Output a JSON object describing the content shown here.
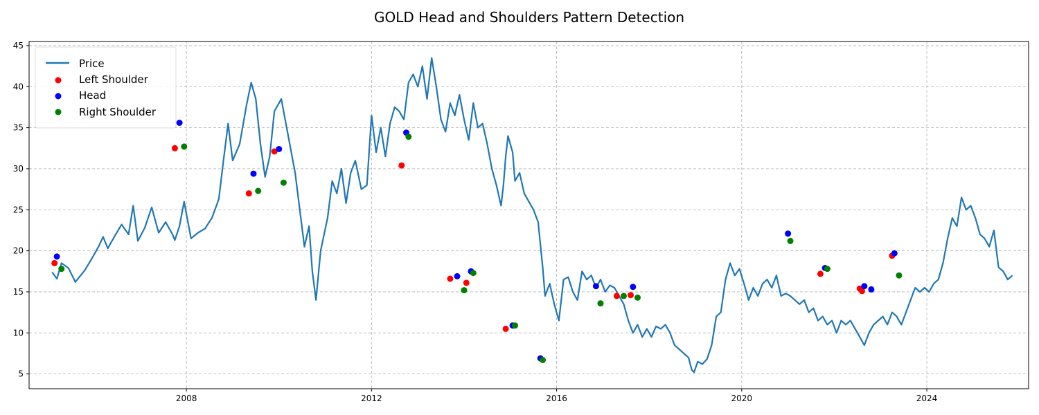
{
  "chart_data": {
    "type": "line",
    "title": "GOLD Head and Shoulders Pattern Detection",
    "xlabel": "",
    "ylabel": "",
    "xlim": [
      2004.6,
      2026.2
    ],
    "ylim": [
      3.2,
      45.5
    ],
    "x_ticks": [
      {
        "value": 2008,
        "label": "2008"
      },
      {
        "value": 2012,
        "label": "2012"
      },
      {
        "value": 2016,
        "label": "2016"
      },
      {
        "value": 2020,
        "label": "2020"
      },
      {
        "value": 2024,
        "label": "2024"
      }
    ],
    "y_ticks": [
      {
        "value": 5,
        "label": "5"
      },
      {
        "value": 10,
        "label": "10"
      },
      {
        "value": 15,
        "label": "15"
      },
      {
        "value": 20,
        "label": "20"
      },
      {
        "value": 25,
        "label": "25"
      },
      {
        "value": 30,
        "label": "30"
      },
      {
        "value": 35,
        "label": "35"
      },
      {
        "value": 40,
        "label": "40"
      },
      {
        "value": 45,
        "label": "45"
      }
    ],
    "grid": true,
    "legend_position": "top-left",
    "series": [
      {
        "name": "Price",
        "kind": "line",
        "color": "#1f77b4",
        "points": [
          [
            2005.1,
            17.4
          ],
          [
            2005.2,
            16.6
          ],
          [
            2005.3,
            18.5
          ],
          [
            2005.45,
            17.9
          ],
          [
            2005.6,
            16.2
          ],
          [
            2005.8,
            17.6
          ],
          [
            2005.95,
            19.0
          ],
          [
            2006.1,
            20.5
          ],
          [
            2006.2,
            21.7
          ],
          [
            2006.3,
            20.3
          ],
          [
            2006.45,
            21.8
          ],
          [
            2006.6,
            23.2
          ],
          [
            2006.75,
            22.0
          ],
          [
            2006.85,
            25.5
          ],
          [
            2006.95,
            21.2
          ],
          [
            2007.1,
            22.8
          ],
          [
            2007.25,
            25.3
          ],
          [
            2007.4,
            22.2
          ],
          [
            2007.55,
            23.5
          ],
          [
            2007.7,
            22.0
          ],
          [
            2007.75,
            21.3
          ],
          [
            2007.85,
            23.0
          ],
          [
            2007.95,
            26.0
          ],
          [
            2008.1,
            21.5
          ],
          [
            2008.25,
            22.2
          ],
          [
            2008.4,
            22.7
          ],
          [
            2008.55,
            24.0
          ],
          [
            2008.7,
            26.3
          ],
          [
            2008.8,
            31.0
          ],
          [
            2008.9,
            35.5
          ],
          [
            2009.0,
            31.0
          ],
          [
            2009.15,
            33.0
          ],
          [
            2009.3,
            37.8
          ],
          [
            2009.4,
            40.5
          ],
          [
            2009.5,
            38.5
          ],
          [
            2009.6,
            33.0
          ],
          [
            2009.7,
            29.0
          ],
          [
            2009.8,
            31.5
          ],
          [
            2009.9,
            37.0
          ],
          [
            2010.05,
            38.5
          ],
          [
            2010.2,
            34.0
          ],
          [
            2010.35,
            29.5
          ],
          [
            2010.45,
            25.0
          ],
          [
            2010.55,
            20.5
          ],
          [
            2010.65,
            23.0
          ],
          [
            2010.72,
            17.5
          ],
          [
            2010.8,
            14.0
          ],
          [
            2010.9,
            20.0
          ],
          [
            2011.05,
            24.0
          ],
          [
            2011.15,
            28.5
          ],
          [
            2011.25,
            27.0
          ],
          [
            2011.35,
            30.0
          ],
          [
            2011.45,
            25.8
          ],
          [
            2011.55,
            29.5
          ],
          [
            2011.65,
            31.0
          ],
          [
            2011.78,
            27.5
          ],
          [
            2011.9,
            28.0
          ],
          [
            2012.0,
            36.5
          ],
          [
            2012.1,
            32.0
          ],
          [
            2012.2,
            35.0
          ],
          [
            2012.3,
            31.5
          ],
          [
            2012.4,
            35.5
          ],
          [
            2012.5,
            37.5
          ],
          [
            2012.6,
            37.0
          ],
          [
            2012.7,
            36.0
          ],
          [
            2012.8,
            40.5
          ],
          [
            2012.9,
            41.5
          ],
          [
            2013.0,
            40.0
          ],
          [
            2013.1,
            42.5
          ],
          [
            2013.2,
            38.5
          ],
          [
            2013.3,
            43.5
          ],
          [
            2013.4,
            40.0
          ],
          [
            2013.5,
            36.0
          ],
          [
            2013.6,
            34.5
          ],
          [
            2013.7,
            38.0
          ],
          [
            2013.8,
            36.5
          ],
          [
            2013.9,
            39.0
          ],
          [
            2014.0,
            36.0
          ],
          [
            2014.1,
            33.5
          ],
          [
            2014.2,
            38.0
          ],
          [
            2014.3,
            35.0
          ],
          [
            2014.4,
            35.5
          ],
          [
            2014.5,
            33.0
          ],
          [
            2014.6,
            30.0
          ],
          [
            2014.7,
            28.0
          ],
          [
            2014.8,
            25.5
          ],
          [
            2014.85,
            28.0
          ],
          [
            2014.9,
            31.5
          ],
          [
            2014.95,
            34.0
          ],
          [
            2015.05,
            32.0
          ],
          [
            2015.1,
            28.5
          ],
          [
            2015.2,
            29.5
          ],
          [
            2015.3,
            27.0
          ],
          [
            2015.4,
            26.0
          ],
          [
            2015.5,
            25.0
          ],
          [
            2015.6,
            23.5
          ],
          [
            2015.7,
            18.0
          ],
          [
            2015.75,
            14.5
          ],
          [
            2015.85,
            16.0
          ],
          [
            2015.95,
            13.5
          ],
          [
            2016.05,
            11.5
          ],
          [
            2016.15,
            16.5
          ],
          [
            2016.25,
            16.8
          ],
          [
            2016.35,
            15.0
          ],
          [
            2016.45,
            14.0
          ],
          [
            2016.55,
            17.5
          ],
          [
            2016.65,
            16.5
          ],
          [
            2016.75,
            17.0
          ],
          [
            2016.85,
            15.5
          ],
          [
            2016.95,
            16.5
          ],
          [
            2017.05,
            15.0
          ],
          [
            2017.15,
            15.8
          ],
          [
            2017.25,
            15.5
          ],
          [
            2017.35,
            14.5
          ],
          [
            2017.45,
            13.5
          ],
          [
            2017.55,
            11.5
          ],
          [
            2017.65,
            10.0
          ],
          [
            2017.75,
            11.0
          ],
          [
            2017.85,
            9.5
          ],
          [
            2017.95,
            10.5
          ],
          [
            2018.05,
            9.5
          ],
          [
            2018.15,
            10.8
          ],
          [
            2018.25,
            10.5
          ],
          [
            2018.35,
            11.0
          ],
          [
            2018.45,
            10.0
          ],
          [
            2018.55,
            8.5
          ],
          [
            2018.65,
            8.0
          ],
          [
            2018.75,
            7.5
          ],
          [
            2018.85,
            7.0
          ],
          [
            2018.92,
            5.5
          ],
          [
            2018.97,
            5.2
          ],
          [
            2019.05,
            6.5
          ],
          [
            2019.15,
            6.2
          ],
          [
            2019.25,
            6.8
          ],
          [
            2019.35,
            8.5
          ],
          [
            2019.45,
            12.0
          ],
          [
            2019.55,
            12.5
          ],
          [
            2019.65,
            16.5
          ],
          [
            2019.75,
            18.5
          ],
          [
            2019.85,
            17.0
          ],
          [
            2019.95,
            17.8
          ],
          [
            2020.05,
            16.0
          ],
          [
            2020.15,
            14.0
          ],
          [
            2020.25,
            15.5
          ],
          [
            2020.35,
            14.5
          ],
          [
            2020.45,
            16.0
          ],
          [
            2020.55,
            16.5
          ],
          [
            2020.65,
            15.5
          ],
          [
            2020.75,
            17.0
          ],
          [
            2020.85,
            14.5
          ],
          [
            2020.95,
            14.8
          ],
          [
            2021.05,
            14.5
          ],
          [
            2021.15,
            14.0
          ],
          [
            2021.25,
            13.5
          ],
          [
            2021.35,
            14.0
          ],
          [
            2021.45,
            12.5
          ],
          [
            2021.55,
            13.0
          ],
          [
            2021.65,
            11.5
          ],
          [
            2021.75,
            12.0
          ],
          [
            2021.85,
            11.0
          ],
          [
            2021.95,
            11.5
          ],
          [
            2022.05,
            10.0
          ],
          [
            2022.15,
            11.5
          ],
          [
            2022.25,
            11.0
          ],
          [
            2022.35,
            11.5
          ],
          [
            2022.45,
            10.5
          ],
          [
            2022.55,
            9.5
          ],
          [
            2022.65,
            8.5
          ],
          [
            2022.75,
            10.0
          ],
          [
            2022.85,
            11.0
          ],
          [
            2022.95,
            11.5
          ],
          [
            2023.05,
            12.0
          ],
          [
            2023.15,
            11.0
          ],
          [
            2023.25,
            12.5
          ],
          [
            2023.35,
            12.0
          ],
          [
            2023.45,
            11.0
          ],
          [
            2023.55,
            12.5
          ],
          [
            2023.65,
            14.0
          ],
          [
            2023.75,
            15.5
          ],
          [
            2023.85,
            15.0
          ],
          [
            2023.95,
            15.5
          ],
          [
            2024.05,
            15.0
          ],
          [
            2024.15,
            16.0
          ],
          [
            2024.25,
            16.5
          ],
          [
            2024.35,
            18.5
          ],
          [
            2024.45,
            21.5
          ],
          [
            2024.55,
            24.0
          ],
          [
            2024.65,
            23.0
          ],
          [
            2024.75,
            26.5
          ],
          [
            2024.85,
            25.0
          ],
          [
            2024.95,
            25.5
          ],
          [
            2025.05,
            24.0
          ],
          [
            2025.15,
            22.0
          ],
          [
            2025.25,
            21.5
          ],
          [
            2025.35,
            20.5
          ],
          [
            2025.45,
            22.5
          ],
          [
            2025.55,
            18.0
          ],
          [
            2025.65,
            17.5
          ],
          [
            2025.75,
            16.5
          ],
          [
            2025.85,
            17.0
          ]
        ]
      },
      {
        "name": "Left Shoulder",
        "kind": "scatter",
        "color": "#ff0000",
        "points": [
          [
            2005.15,
            18.5
          ],
          [
            2007.75,
            32.5
          ],
          [
            2009.35,
            27.0
          ],
          [
            2009.9,
            32.1
          ],
          [
            2012.65,
            30.4
          ],
          [
            2013.7,
            16.6
          ],
          [
            2014.05,
            16.1
          ],
          [
            2014.9,
            10.5
          ],
          [
            2017.3,
            14.5
          ],
          [
            2017.6,
            14.6
          ],
          [
            2021.7,
            17.2
          ],
          [
            2022.55,
            15.4
          ],
          [
            2022.6,
            15.1
          ],
          [
            2023.25,
            19.4
          ]
        ]
      },
      {
        "name": "Head",
        "kind": "scatter",
        "color": "#0000ff",
        "points": [
          [
            2005.2,
            19.3
          ],
          [
            2007.85,
            35.6
          ],
          [
            2009.45,
            29.4
          ],
          [
            2010.0,
            32.4
          ],
          [
            2012.75,
            34.4
          ],
          [
            2013.85,
            16.9
          ],
          [
            2014.15,
            17.5
          ],
          [
            2015.05,
            10.9
          ],
          [
            2015.65,
            6.9
          ],
          [
            2016.85,
            15.7
          ],
          [
            2017.65,
            15.6
          ],
          [
            2021.0,
            22.1
          ],
          [
            2021.8,
            17.9
          ],
          [
            2022.65,
            15.7
          ],
          [
            2022.8,
            15.3
          ],
          [
            2023.3,
            19.7
          ]
        ]
      },
      {
        "name": "Right Shoulder",
        "kind": "scatter",
        "color": "#008000",
        "points": [
          [
            2005.3,
            17.8
          ],
          [
            2007.95,
            32.7
          ],
          [
            2009.55,
            27.3
          ],
          [
            2010.1,
            28.3
          ],
          [
            2012.8,
            33.9
          ],
          [
            2014.0,
            15.2
          ],
          [
            2014.2,
            17.3
          ],
          [
            2015.1,
            10.9
          ],
          [
            2015.7,
            6.7
          ],
          [
            2016.95,
            13.6
          ],
          [
            2017.45,
            14.5
          ],
          [
            2017.75,
            14.3
          ],
          [
            2021.05,
            21.2
          ],
          [
            2021.85,
            17.8
          ],
          [
            2023.4,
            17.0
          ]
        ]
      }
    ]
  }
}
